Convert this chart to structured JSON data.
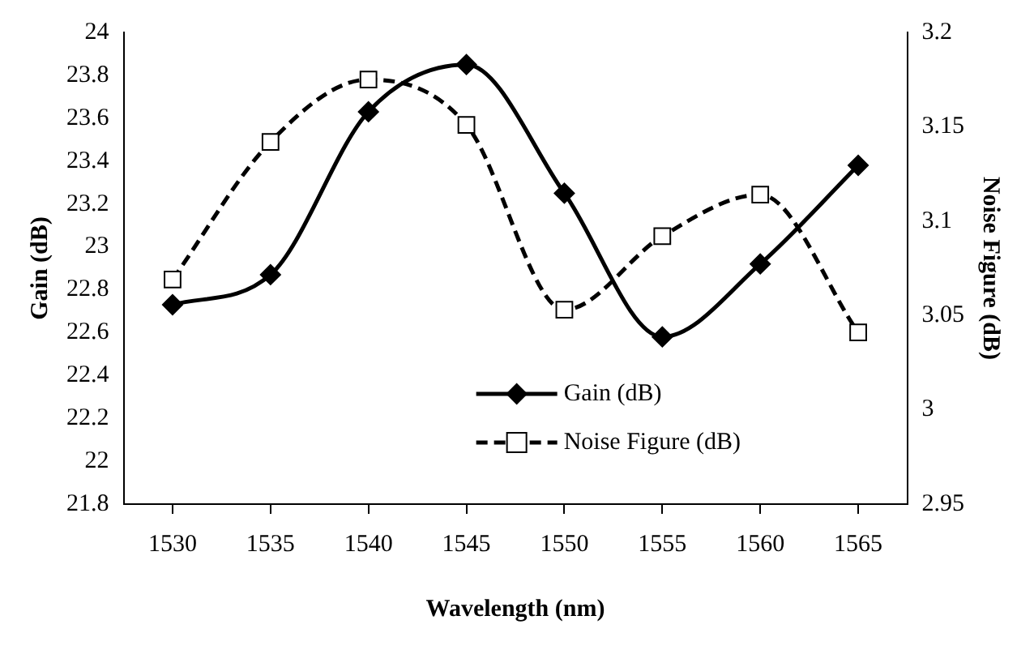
{
  "chart_data": {
    "type": "line",
    "xlabel": "Wavelength (nm)",
    "ylabel": "Gain (dB)",
    "y2label": "Noise Figure (dB)",
    "categories": [
      "1530",
      "1535",
      "1540",
      "1545",
      "1550",
      "1555",
      "1560",
      "1565"
    ],
    "series": [
      {
        "name": "Gain (dB)",
        "color": "#000000",
        "marker": "diamond",
        "line_style": "solid",
        "values": [
          22.73,
          22.87,
          23.63,
          23.85,
          23.25,
          22.58,
          22.92,
          23.38
        ]
      },
      {
        "name": "Noise Figure (dB)",
        "color": "#000000",
        "marker": "square",
        "line_style": "dashed",
        "axis": "y2",
        "values": [
          3.069,
          3.142,
          3.175,
          3.151,
          3.053,
          3.092,
          3.114,
          3.041
        ]
      }
    ],
    "ylim": [
      21.8,
      24
    ],
    "yticks": [
      21.8,
      22,
      22.2,
      22.4,
      22.6,
      22.8,
      23,
      23.2,
      23.4,
      23.6,
      23.8,
      24
    ],
    "y2lim": [
      2.95,
      3.2
    ],
    "y2ticks": [
      2.95,
      3,
      3.05,
      3.1,
      3.15,
      3.2
    ],
    "grid": false,
    "legend": "bottom"
  }
}
